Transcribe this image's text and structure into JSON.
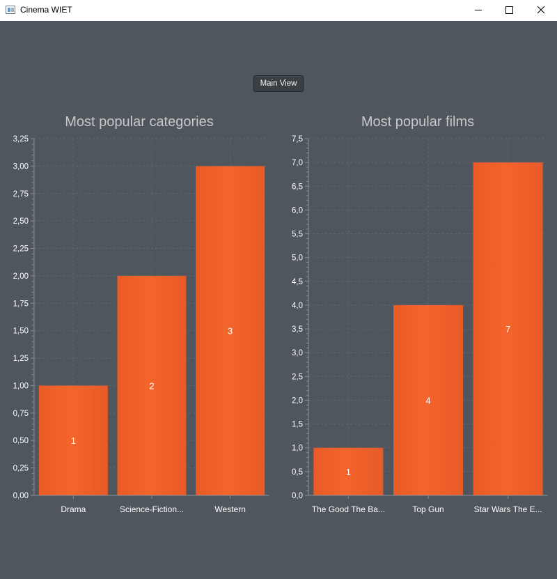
{
  "window": {
    "title": "Cinema WIET"
  },
  "toolbar": {
    "main_view_label": "Main View"
  },
  "colors": {
    "background": "#50565d",
    "bar": "#f0602a",
    "grid": "#5f666e",
    "text": "#ffffff",
    "title": "#c8c8c8"
  },
  "chart_data": [
    {
      "type": "bar",
      "title": "Most popular categories",
      "categories": [
        "Drama",
        "Science-Fiction...",
        "Western"
      ],
      "values": [
        1,
        2,
        3
      ],
      "data_labels": [
        "1",
        "2",
        "3"
      ],
      "ylim": [
        0,
        3.25
      ],
      "yticks": [
        "0,00",
        "0,25",
        "0,50",
        "0,75",
        "1,00",
        "1,25",
        "1,50",
        "1,75",
        "2,00",
        "2,25",
        "2,50",
        "2,75",
        "3,00",
        "3,25"
      ],
      "grid": true,
      "legend": "none"
    },
    {
      "type": "bar",
      "title": "Most popular films",
      "categories": [
        "The Good The Ba...",
        "Top Gun",
        "Star Wars The E..."
      ],
      "values": [
        1,
        4,
        7
      ],
      "data_labels": [
        "1",
        "4",
        "7"
      ],
      "ylim": [
        0,
        7.5
      ],
      "yticks": [
        "0,0",
        "0,5",
        "1,0",
        "1,5",
        "2,0",
        "2,5",
        "3,0",
        "3,5",
        "4,0",
        "4,5",
        "5,0",
        "5,5",
        "6,0",
        "6,5",
        "7,0",
        "7,5"
      ],
      "grid": true,
      "legend": "none"
    }
  ]
}
